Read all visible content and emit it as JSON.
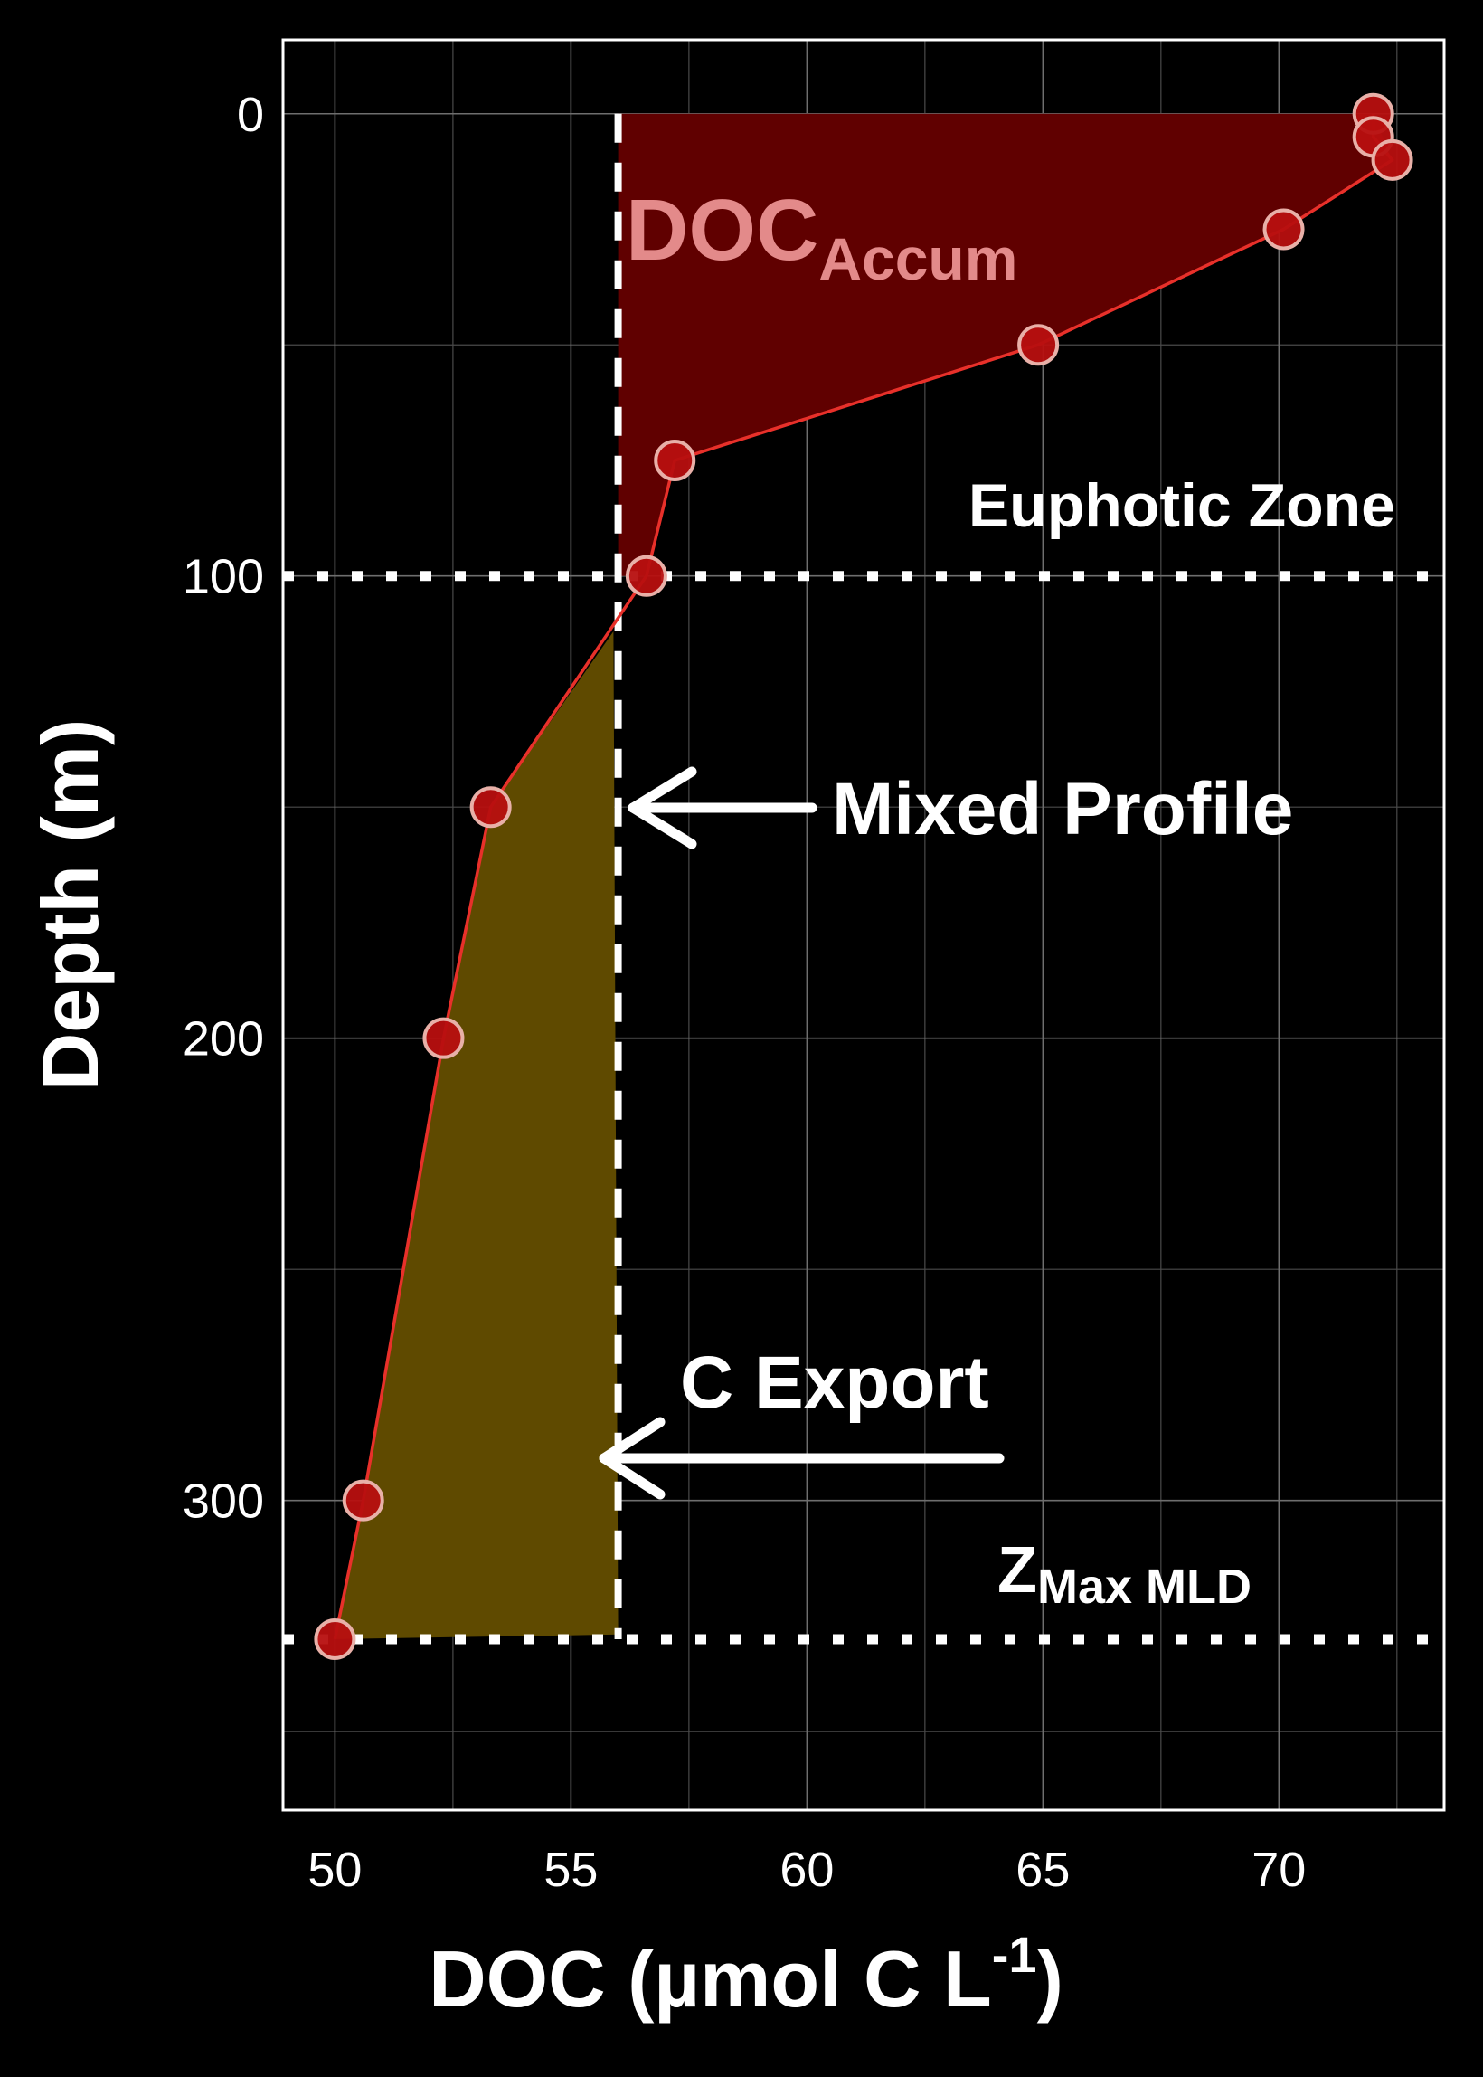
{
  "chart_data": {
    "type": "line",
    "xlabel": "DOC (µmol C L",
    "xlabel_sup": "-1",
    "xlabel_end": ")",
    "ylabel": "Depth (m)",
    "xlim": [
      48.9,
      73.5
    ],
    "ylim": [
      -16,
      367
    ],
    "y_inverted": true,
    "x_ticks": [
      50,
      55,
      60,
      65,
      70
    ],
    "y_ticks": [
      0,
      100,
      200,
      300
    ],
    "grid": true,
    "colors": {
      "background": "#000000",
      "profile_line": "#e8302a",
      "point_fill": "#b70f0f",
      "point_stroke": "#e8b0a8",
      "accum_fill": "#600000",
      "export_fill": "#5f4a00",
      "reference": "#ffffff",
      "accum_label": "#e38a8a"
    },
    "series": [
      {
        "points": [
          {
            "x": 72.0,
            "y": 0
          },
          {
            "x": 72.0,
            "y": 5
          },
          {
            "x": 72.4,
            "y": 10
          },
          {
            "x": 70.1,
            "y": 25
          },
          {
            "x": 64.9,
            "y": 50
          },
          {
            "x": 57.2,
            "y": 75
          },
          {
            "x": 56.6,
            "y": 100
          },
          {
            "x": 53.3,
            "y": 150
          },
          {
            "x": 52.3,
            "y": 200
          },
          {
            "x": 50.6,
            "y": 300
          },
          {
            "x": 50.0,
            "y": 330
          }
        ]
      }
    ],
    "mixed_profile_x": 56.0,
    "euphotic_depth": 100,
    "max_mld_depth": 330,
    "accum_polygon": [
      {
        "x": 56.0,
        "y": 0
      },
      {
        "x": 72.0,
        "y": 0
      },
      {
        "x": 72.4,
        "y": 10
      },
      {
        "x": 70.1,
        "y": 25
      },
      {
        "x": 64.9,
        "y": 50
      },
      {
        "x": 57.2,
        "y": 75
      },
      {
        "x": 56.6,
        "y": 100
      },
      {
        "x": 56.0,
        "y": 100
      }
    ],
    "export_polygon": [
      {
        "x": 55.9,
        "y": 112
      },
      {
        "x": 56.0,
        "y": 329
      },
      {
        "x": 50.0,
        "y": 330
      },
      {
        "x": 50.6,
        "y": 300
      },
      {
        "x": 52.3,
        "y": 200
      },
      {
        "x": 53.3,
        "y": 150
      }
    ],
    "annotations": {
      "doc_accum_main": "DOC",
      "doc_accum_sub": "Accum",
      "euphotic_zone": "Euphotic Zone",
      "mixed_profile": "Mixed Profile",
      "c_export": "C Export",
      "zmax_main": "Z",
      "zmax_sub": "Max MLD"
    }
  }
}
